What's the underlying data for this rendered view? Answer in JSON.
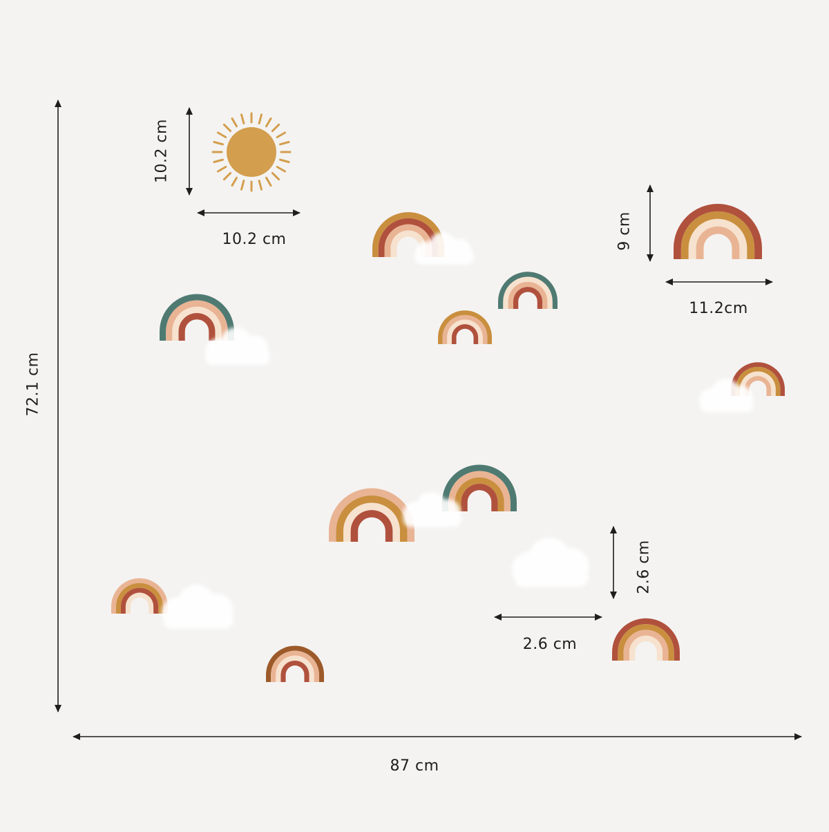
{
  "labels": {
    "total_height": "72.1 cm",
    "total_width": "87 cm",
    "sun_height": "10.2 cm",
    "sun_width": "10.2 cm",
    "rainbow_height": "9 cm",
    "rainbow_width": "11.2cm",
    "cloud_height": "2.6 cm",
    "cloud_width": "2.6 cm"
  },
  "colors": {
    "background": "#f4f3f2",
    "sun": "#d39e4d",
    "rust": "#b0513d",
    "ochre": "#c98f3f",
    "peach": "#e9b494",
    "cream": "#f6e2ce",
    "teal": "#4f7a72",
    "brown": "#9c5a2a",
    "cloud": "#ffffff",
    "ink": "#1e1e1e"
  },
  "rainbows": [
    {
      "id": "rb-top-center",
      "bands": [
        "ochre",
        "rust",
        "peach",
        "cream"
      ]
    },
    {
      "id": "rb-top-right-large",
      "bands": [
        "rust",
        "ochre",
        "cream",
        "peach"
      ]
    },
    {
      "id": "rb-left-teal",
      "bands": [
        "teal",
        "peach",
        "cream",
        "rust"
      ]
    },
    {
      "id": "rb-small-center",
      "bands": [
        "ochre",
        "peach",
        "cream",
        "rust"
      ]
    },
    {
      "id": "rb-teal-right",
      "bands": [
        "teal",
        "cream",
        "peach",
        "rust"
      ]
    },
    {
      "id": "rb-right-small",
      "bands": [
        "rust",
        "ochre",
        "cream",
        "peach"
      ]
    },
    {
      "id": "rb-mid-teal",
      "bands": [
        "teal",
        "peach",
        "ochre",
        "rust"
      ]
    },
    {
      "id": "rb-mid-wide",
      "bands": [
        "peach",
        "ochre",
        "cream",
        "rust"
      ]
    },
    {
      "id": "rb-bottom-left",
      "bands": [
        "peach",
        "ochre",
        "rust",
        "cream"
      ]
    },
    {
      "id": "rb-bottom-center",
      "bands": [
        "brown",
        "peach",
        "cream",
        "rust"
      ]
    },
    {
      "id": "rb-bottom-right",
      "bands": [
        "rust",
        "ochre",
        "peach",
        "cream"
      ]
    }
  ]
}
